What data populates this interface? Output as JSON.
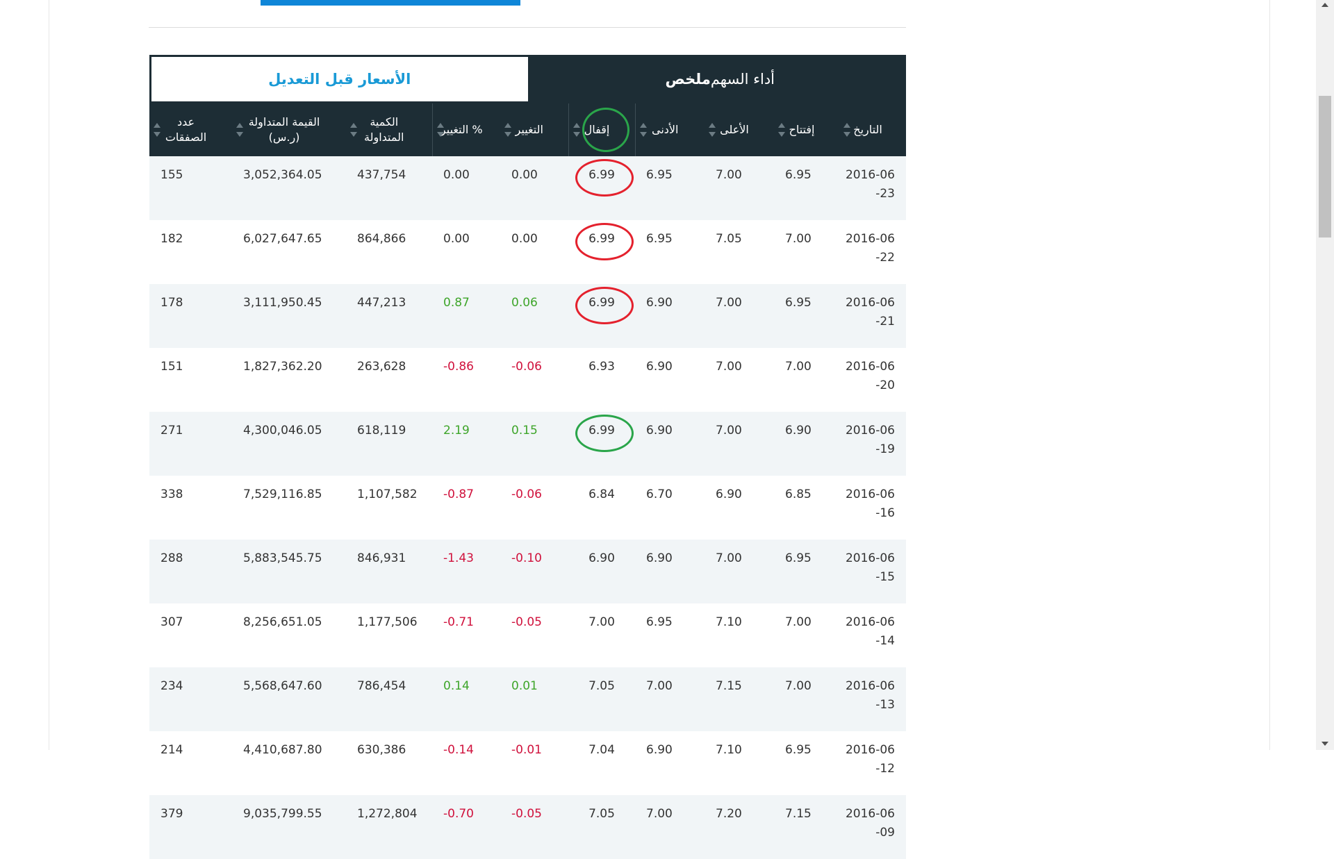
{
  "tabs": {
    "summary_bold": "ملخص",
    "summary_rest": "أداء السهم",
    "unadjusted": "الأسعار قبل التعديل"
  },
  "columns": [
    {
      "key": "date",
      "label": "التاريخ"
    },
    {
      "key": "open",
      "label": "إفتتاح"
    },
    {
      "key": "high",
      "label": "الأعلى"
    },
    {
      "key": "low",
      "label": "الأدنى"
    },
    {
      "key": "close",
      "label": "إقفال"
    },
    {
      "key": "change",
      "label": "التغيير"
    },
    {
      "key": "change_pct",
      "label": "% التغيير"
    },
    {
      "key": "volume",
      "label": "الكمية المتداولة"
    },
    {
      "key": "value",
      "label": "القيمة المتداولة (ر.س)"
    },
    {
      "key": "trades",
      "label": "عدد الصفقات"
    }
  ],
  "rows": [
    {
      "date": "2016-06-23",
      "open": "6.95",
      "high": "7.00",
      "low": "6.95",
      "close": "6.99",
      "change": "0.00",
      "change_pct": "0.00",
      "volume": "437,754",
      "value": "3,052,364.05",
      "trades": "155",
      "dir": "flat",
      "mark": "red"
    },
    {
      "date": "2016-06-22",
      "open": "7.00",
      "high": "7.05",
      "low": "6.95",
      "close": "6.99",
      "change": "0.00",
      "change_pct": "0.00",
      "volume": "864,866",
      "value": "6,027,647.65",
      "trades": "182",
      "dir": "flat",
      "mark": "red"
    },
    {
      "date": "2016-06-21",
      "open": "6.95",
      "high": "7.00",
      "low": "6.90",
      "close": "6.99",
      "change": "0.06",
      "change_pct": "0.87",
      "volume": "447,213",
      "value": "3,111,950.45",
      "trades": "178",
      "dir": "up",
      "mark": "red"
    },
    {
      "date": "2016-06-20",
      "open": "7.00",
      "high": "7.00",
      "low": "6.90",
      "close": "6.93",
      "change": "0.06-",
      "change_pct": "0.86-",
      "volume": "263,628",
      "value": "1,827,362.20",
      "trades": "151",
      "dir": "down",
      "mark": ""
    },
    {
      "date": "2016-06-19",
      "open": "6.90",
      "high": "7.00",
      "low": "6.90",
      "close": "6.99",
      "change": "0.15",
      "change_pct": "2.19",
      "volume": "618,119",
      "value": "4,300,046.05",
      "trades": "271",
      "dir": "up",
      "mark": "green"
    },
    {
      "date": "2016-06-16",
      "open": "6.85",
      "high": "6.90",
      "low": "6.70",
      "close": "6.84",
      "change": "0.06-",
      "change_pct": "0.87-",
      "volume": "1,107,582",
      "value": "7,529,116.85",
      "trades": "338",
      "dir": "down",
      "mark": ""
    },
    {
      "date": "2016-06-15",
      "open": "6.95",
      "high": "7.00",
      "low": "6.90",
      "close": "6.90",
      "change": "0.10-",
      "change_pct": "1.43-",
      "volume": "846,931",
      "value": "5,883,545.75",
      "trades": "288",
      "dir": "down",
      "mark": ""
    },
    {
      "date": "2016-06-14",
      "open": "7.00",
      "high": "7.10",
      "low": "6.95",
      "close": "7.00",
      "change": "0.05-",
      "change_pct": "0.71-",
      "volume": "1,177,506",
      "value": "8,256,651.05",
      "trades": "307",
      "dir": "down",
      "mark": ""
    },
    {
      "date": "2016-06-13",
      "open": "7.00",
      "high": "7.15",
      "low": "7.00",
      "close": "7.05",
      "change": "0.01",
      "change_pct": "0.14",
      "volume": "786,454",
      "value": "5,568,647.60",
      "trades": "234",
      "dir": "up",
      "mark": ""
    },
    {
      "date": "2016-06-12",
      "open": "6.95",
      "high": "7.10",
      "low": "6.90",
      "close": "7.04",
      "change": "0.01-",
      "change_pct": "0.14-",
      "volume": "630,386",
      "value": "4,410,687.80",
      "trades": "214",
      "dir": "down",
      "mark": ""
    },
    {
      "date": "2016-06-09",
      "open": "7.15",
      "high": "7.20",
      "low": "7.00",
      "close": "7.05",
      "change": "0.05-",
      "change_pct": "0.70-",
      "volume": "1,272,804",
      "value": "9,035,799.55",
      "trades": "379",
      "dir": "down",
      "mark": ""
    }
  ],
  "colors": {
    "header_bg": "#1d2d35",
    "accent_blue": "#1a9ad6",
    "positive": "#3ea52a",
    "negative": "#d0113c",
    "ring_red": "#e4212d",
    "ring_green": "#2aa54a"
  }
}
